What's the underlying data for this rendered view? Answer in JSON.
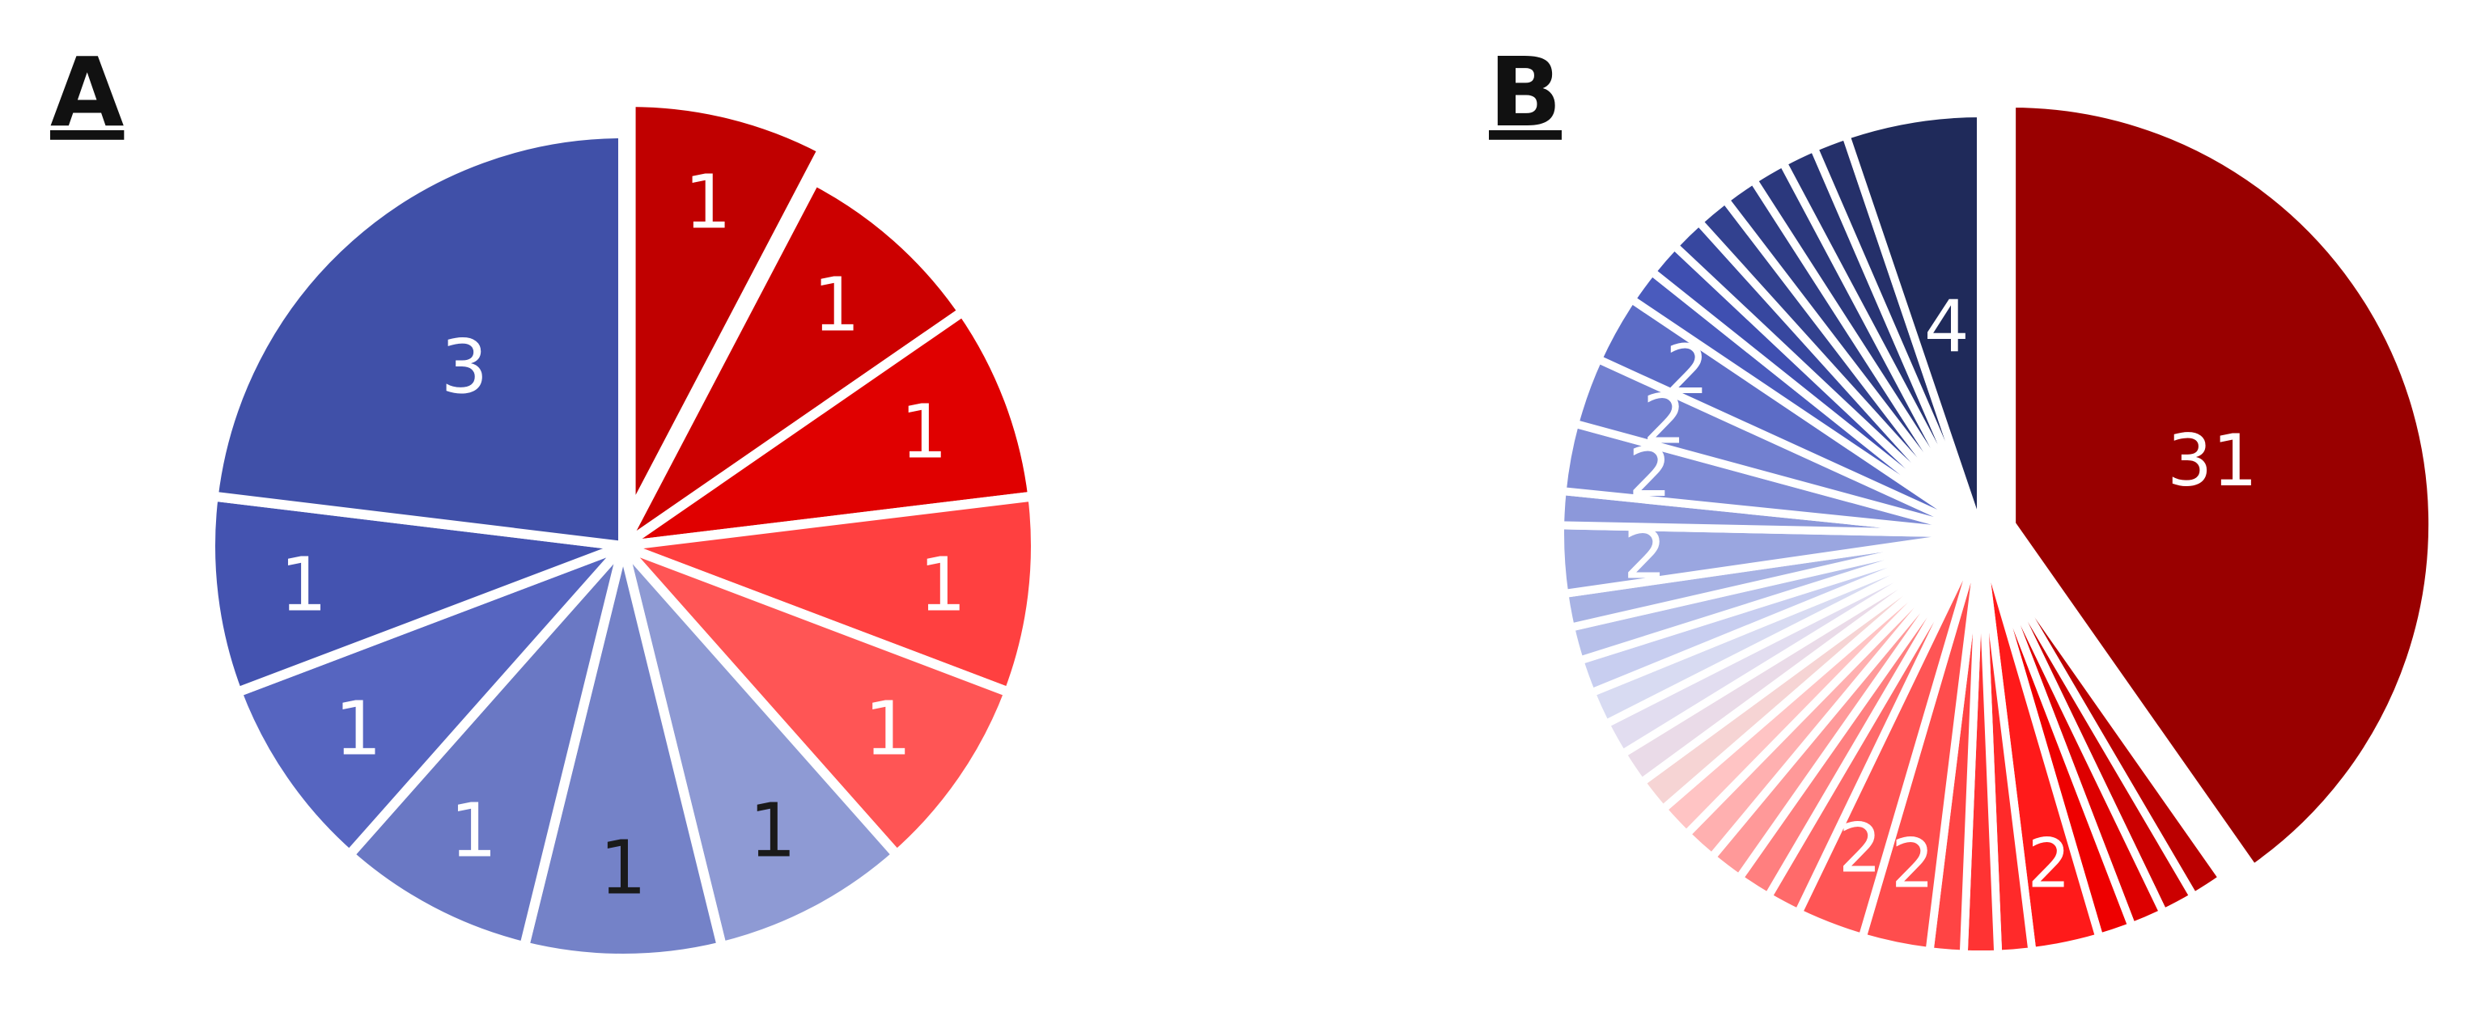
{
  "chart_data": [
    {
      "type": "pie",
      "panel_label": "A",
      "values": [
        1,
        1,
        1,
        1,
        1,
        1,
        1,
        1,
        1,
        1,
        3
      ],
      "labels": [
        "1",
        "1",
        "1",
        "1",
        "1",
        "1",
        "1",
        "1",
        "1",
        "1",
        "3"
      ],
      "label_colors": [
        "#ffffff",
        "#ffffff",
        "#ffffff",
        "#ffffff",
        "#ffffff",
        "#1a1a1a",
        "#1a1a1a",
        "#ffffff",
        "#ffffff",
        "#ffffff",
        "#ffffff"
      ],
      "colors": [
        "#c00000",
        "#cc0000",
        "#e00000",
        "#ff4040",
        "#ff5555",
        "#8e9ad4",
        "#7482c8",
        "#6a78c4",
        "#5665c0",
        "#4453b0",
        "#4050a8"
      ],
      "exploded": [
        0
      ],
      "start_angle_deg": 0,
      "direction": "clockwise"
    },
    {
      "type": "pie",
      "panel_label": "B",
      "values": [
        31,
        1,
        1,
        1,
        1,
        2,
        1,
        1,
        1,
        2,
        2,
        1,
        1,
        1,
        1,
        1,
        1,
        1,
        1,
        1,
        1,
        1,
        1,
        2,
        1,
        2,
        2,
        2,
        1,
        1,
        1,
        1,
        1,
        1,
        1,
        1,
        4
      ],
      "labels": [
        "31",
        "",
        "",
        "",
        "",
        "2",
        "",
        "",
        "",
        "2",
        "2",
        "",
        "",
        "",
        "",
        "",
        "",
        "",
        "",
        "",
        "",
        "",
        "",
        "2",
        "",
        "2",
        "2",
        "2",
        "",
        "",
        "",
        "",
        "",
        "",
        "",
        "",
        "4"
      ],
      "colors": [
        "#990000",
        "#bb0000",
        "#cc0000",
        "#dd0000",
        "#ee0000",
        "#ff1a1a",
        "#ff2a2a",
        "#ff3333",
        "#ff4444",
        "#ff4d4d",
        "#ff5555",
        "#ff6a6a",
        "#ff7f7f",
        "#ff9999",
        "#ffb0b0",
        "#ffc4c4",
        "#f6d4d4",
        "#eadbe8",
        "#e2ddf0",
        "#d8dbf2",
        "#c8cef0",
        "#b7c0ea",
        "#a8b3e4",
        "#9aa6e0",
        "#8c98da",
        "#7f8cd6",
        "#7280d0",
        "#5c6cc6",
        "#4a5bbd",
        "#3f4fb1",
        "#37479f",
        "#32418f",
        "#2e3c86",
        "#2b387d",
        "#283474",
        "#25306a",
        "#1f2a5a"
      ],
      "exploded": [
        0
      ],
      "start_angle_deg": 0,
      "direction": "clockwise"
    }
  ]
}
